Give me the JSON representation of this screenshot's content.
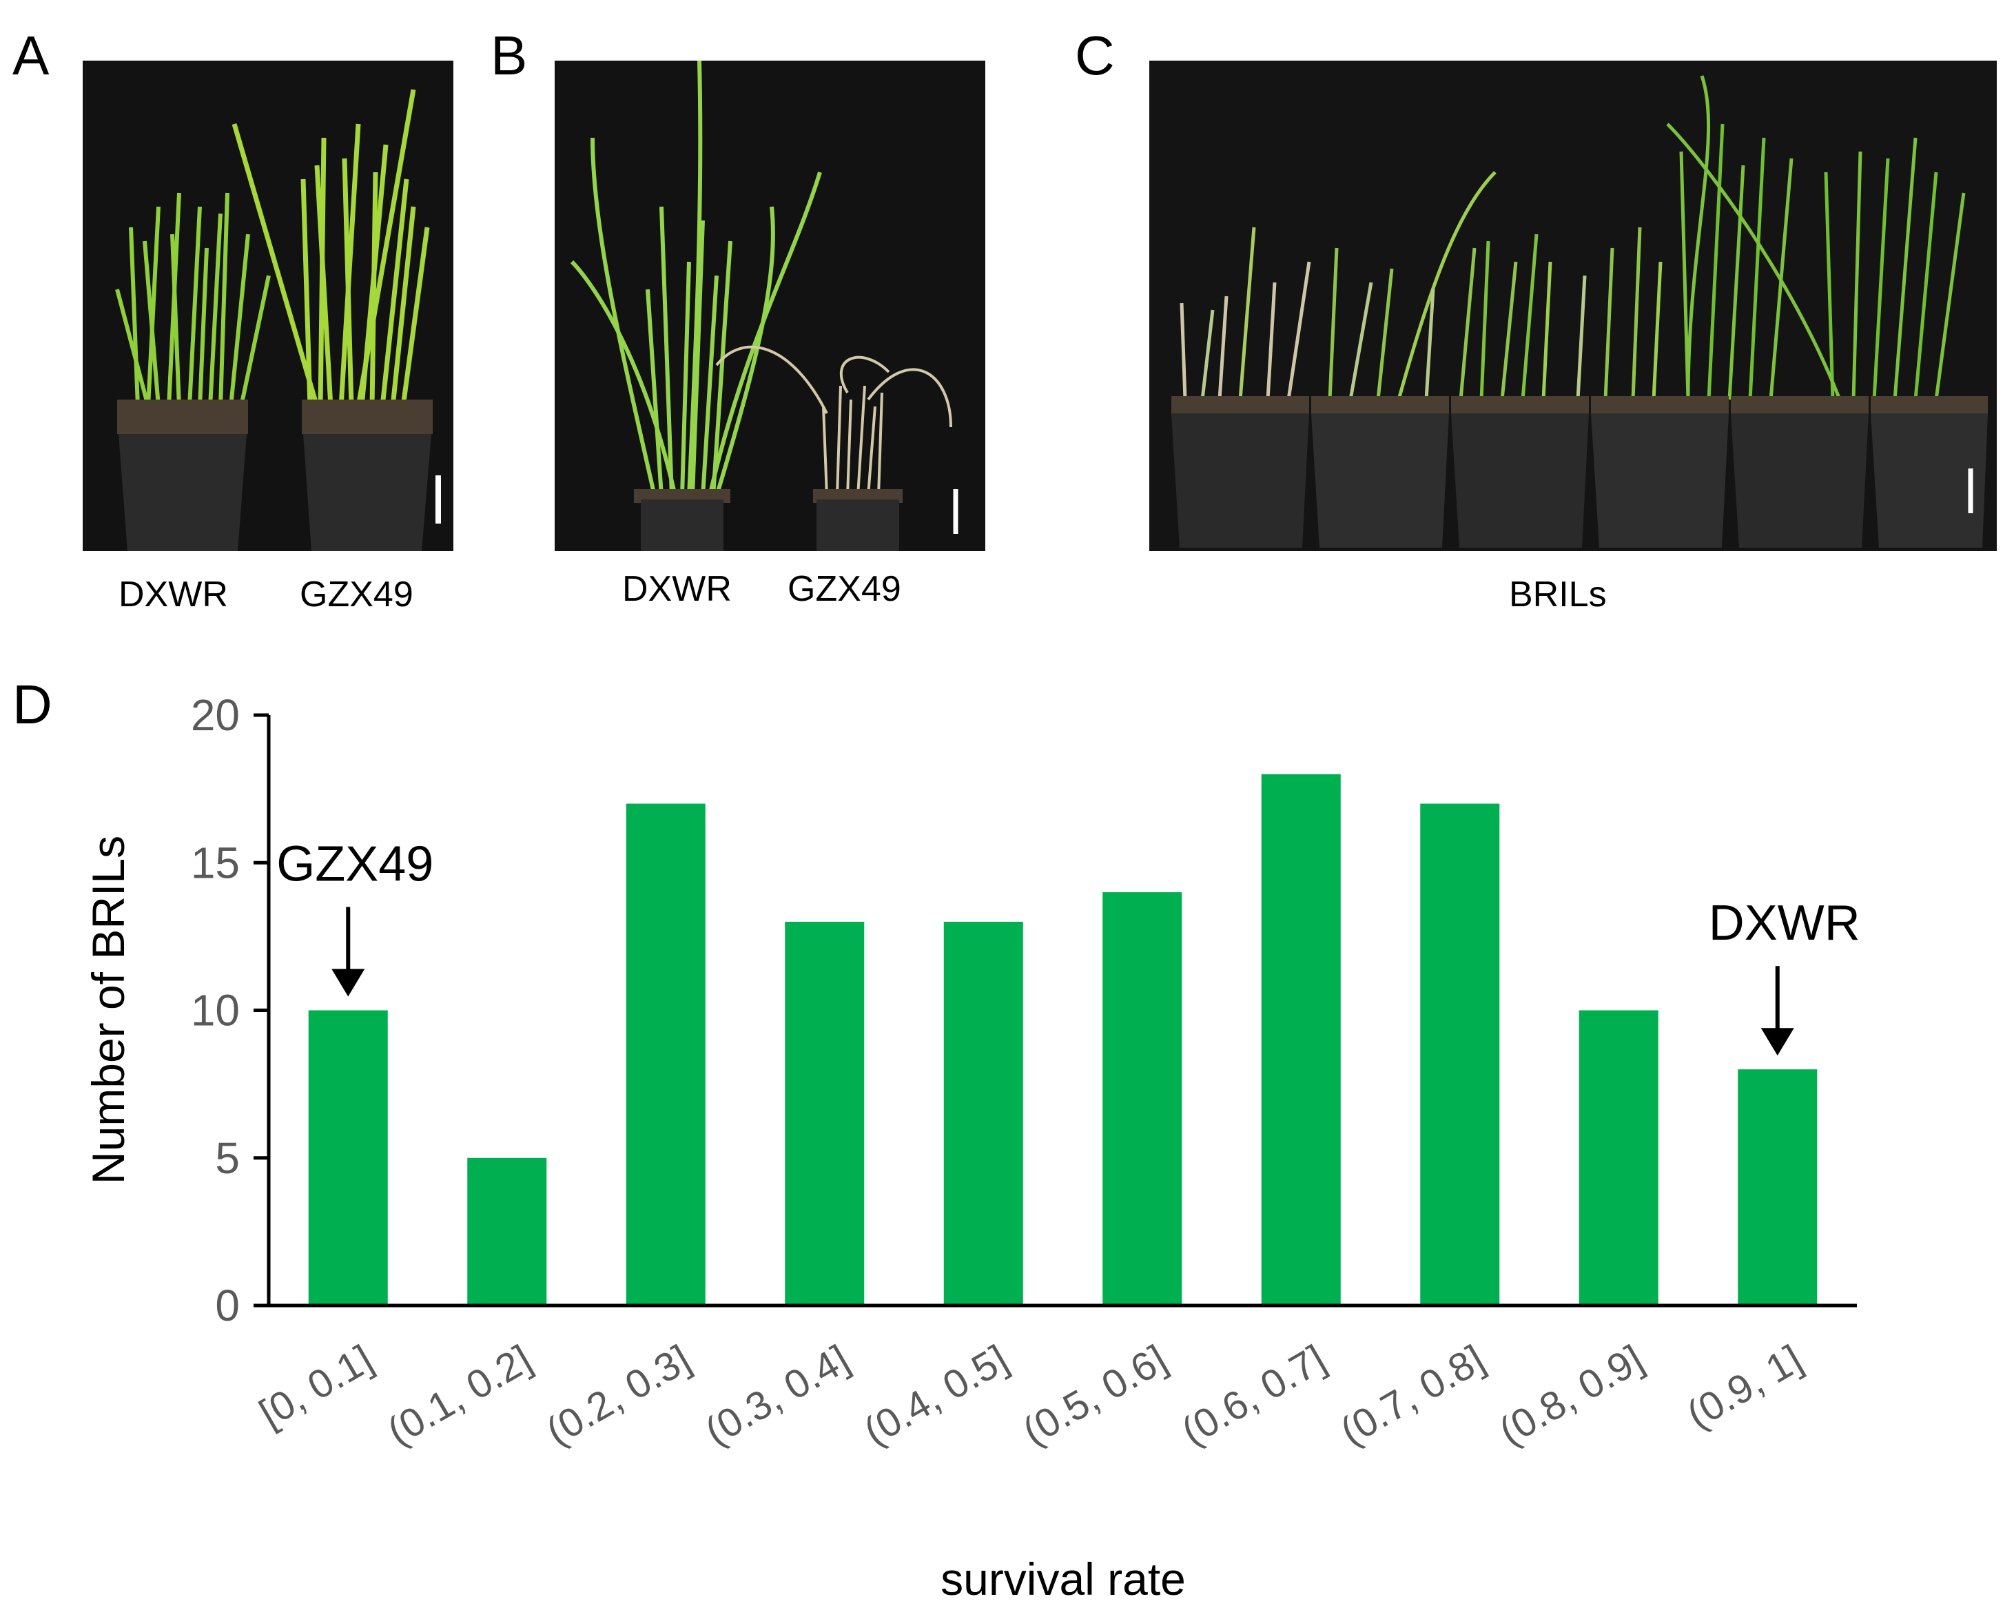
{
  "panels": {
    "a": {
      "letter": "A",
      "labels": [
        "DXWR",
        "GZX49"
      ]
    },
    "b": {
      "letter": "B",
      "labels": [
        "DXWR",
        "GZX49"
      ]
    },
    "c": {
      "letter": "C",
      "label": "BRILs"
    },
    "d": {
      "letter": "D"
    }
  },
  "colors": {
    "bar": "#00b050",
    "photo_bg": "#121212",
    "plant_green": "#7cc23a",
    "dry_plant": "#cfc6a8",
    "pot": "#2a2a2a"
  },
  "chart_data": {
    "type": "bar",
    "categories": [
      "[0, 0.1]",
      "(0.1, 0.2]",
      "(0.2, 0.3]",
      "(0.3, 0.4]",
      "(0.4, 0.5]",
      "(0.5, 0.6]",
      "(0.6, 0.7]",
      "(0.7, 0.8]",
      "(0.8, 0.9]",
      "(0.9, 1]"
    ],
    "values": [
      10,
      5,
      17,
      13,
      13,
      14,
      18,
      17,
      10,
      8
    ],
    "xlabel": "survival rate",
    "ylabel": "Number of BRILs",
    "ylim": [
      0,
      20
    ],
    "yticks": [
      0,
      5,
      10,
      15,
      20
    ],
    "annotations": [
      {
        "text": "GZX49",
        "category_index": 0
      },
      {
        "text": "DXWR",
        "category_index": 9
      }
    ]
  }
}
